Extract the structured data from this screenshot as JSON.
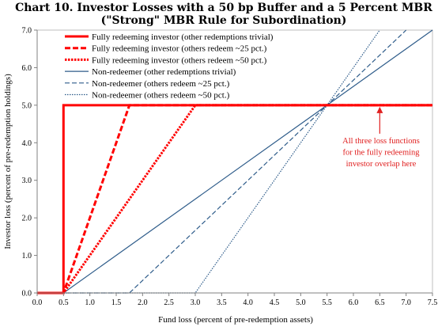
{
  "chart_data": {
    "type": "line",
    "title_line1": "Chart 10. Investor Losses with a 50 bp Buffer and a 5 Percent MBR",
    "title_line2": "(\"Strong\" MBR Rule for Subordination)",
    "xlabel": "Fund loss (percent of pre-redemption assets)",
    "ylabel": "Investor loss (percent of pre-redemption holdings)",
    "xlim": [
      0,
      7.5
    ],
    "ylim": [
      0,
      7.0
    ],
    "x_ticks": [
      "0.0",
      "0.5",
      "1.0",
      "1.5",
      "2.0",
      "2.5",
      "3.0",
      "3.5",
      "4.0",
      "4.5",
      "5.0",
      "5.5",
      "6.0",
      "6.5",
      "7.0",
      "7.5"
    ],
    "y_ticks": [
      "0.0",
      "1.0",
      "2.0",
      "3.0",
      "4.0",
      "5.0",
      "6.0",
      "7.0"
    ],
    "grid": false,
    "legend_position": "top-left",
    "series": [
      {
        "name": "Fully redeeming investor (other redemptions trivial)",
        "color": "#ff0000",
        "dash": "solid",
        "width": 3,
        "x": [
          0,
          0.5,
          0.5,
          7.5
        ],
        "y": [
          0,
          0,
          5.0,
          5.0
        ]
      },
      {
        "name": "Fully redeeming investor (others redeem ~25 pct.)",
        "color": "#ff0000",
        "dash": "dashed",
        "width": 3,
        "x": [
          0,
          0.5,
          1.75,
          7.5
        ],
        "y": [
          0,
          0,
          5.0,
          5.0
        ]
      },
      {
        "name": "Fully redeeming investor (others redeem ~50 pct.)",
        "color": "#ff0000",
        "dash": "dotted",
        "width": 3,
        "x": [
          0,
          0.5,
          3.0,
          7.5
        ],
        "y": [
          0,
          0,
          5.0,
          5.0
        ]
      },
      {
        "name": "Non-redeemer (other redemptions trivial)",
        "color": "#2e5c8a",
        "dash": "solid",
        "width": 1.2,
        "x": [
          0,
          0.5,
          7.5
        ],
        "y": [
          0,
          0,
          7.0
        ]
      },
      {
        "name": "Non-redeemer (others redeem ~25 pct.)",
        "color": "#2e5c8a",
        "dash": "dashed",
        "width": 1.2,
        "x": [
          0,
          1.75,
          7.0
        ],
        "y": [
          0,
          0,
          7.0
        ]
      },
      {
        "name": "Non-redeemer (others redeem ~50 pct.)",
        "color": "#2e5c8a",
        "dash": "dotted",
        "width": 1.2,
        "x": [
          0,
          3.0,
          6.5
        ],
        "y": [
          0,
          0,
          7.0
        ]
      }
    ],
    "annotation": {
      "lines": [
        "All three loss functions",
        "for the fully redeeming",
        "investor overlap here"
      ],
      "arrow_to": {
        "x": 6.5,
        "y": 5.0
      },
      "color": "#e02020"
    }
  }
}
